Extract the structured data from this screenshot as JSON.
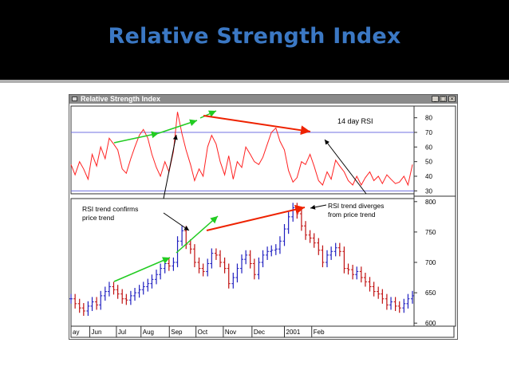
{
  "slide": {
    "title": "Relative Strength Index"
  },
  "window": {
    "title": "Relative Strength Index",
    "minimize_glyph": "_",
    "maximize_glyph": "□",
    "close_glyph": "×"
  },
  "colors": {
    "title": "#3b78c4",
    "rsi_line": "#ff2020",
    "price_up": "#2020c0",
    "price_down": "#c01010",
    "confirm_arrow": "#22cc22",
    "diverge_arrow": "#ee2200",
    "level_line": "#7070e0"
  },
  "chart_data": [
    {
      "type": "line",
      "name": "rsi-panel",
      "label": "14 day RSI",
      "ylim": [
        28,
        88
      ],
      "yticks": [
        "80",
        "70",
        "60",
        "50",
        "40",
        "30"
      ],
      "ytick_values": [
        80,
        70,
        60,
        50,
        40,
        30
      ],
      "levels": [
        70,
        30
      ],
      "xlim": [
        0,
        10
      ],
      "series": [
        {
          "x": [
            0,
            0.12,
            0.25,
            0.37,
            0.5,
            0.62,
            0.75,
            0.87,
            1.0,
            1.12,
            1.25,
            1.37,
            1.5,
            1.62,
            1.75,
            1.87,
            2.0,
            2.12,
            2.25,
            2.37,
            2.5,
            2.62,
            2.75,
            2.87,
            3.0,
            3.12,
            3.25,
            3.37,
            3.5,
            3.62,
            3.75,
            3.87,
            4.0,
            4.12,
            4.25,
            4.37,
            4.5,
            4.62,
            4.75,
            4.87,
            5.0,
            5.12,
            5.25,
            5.37,
            5.5,
            5.62,
            5.75,
            5.87,
            6.0,
            6.12,
            6.25,
            6.37,
            6.5,
            6.62,
            6.75,
            6.87,
            7.0,
            7.12,
            7.25,
            7.37,
            7.5,
            7.62,
            7.75,
            7.87,
            8.0,
            8.12,
            8.25,
            8.37,
            8.5,
            8.62,
            8.75,
            8.87,
            9.0,
            9.12,
            9.25,
            9.37,
            9.5,
            9.62,
            9.75,
            9.87,
            10.0
          ],
          "y": [
            48,
            41,
            50,
            45,
            38,
            55,
            47,
            60,
            52,
            66,
            62,
            58,
            45,
            42,
            52,
            60,
            68,
            72,
            66,
            55,
            46,
            40,
            50,
            43,
            57,
            84,
            69,
            58,
            48,
            37,
            45,
            40,
            60,
            68,
            62,
            50,
            41,
            54,
            38,
            50,
            46,
            60,
            55,
            50,
            48,
            53,
            62,
            70,
            73,
            64,
            58,
            44,
            36,
            39,
            50,
            48,
            55,
            47,
            37,
            34,
            43,
            38,
            51,
            47,
            43,
            37,
            34,
            40,
            34,
            39,
            43,
            37,
            40,
            35,
            41,
            38,
            35,
            36,
            40,
            34,
            48
          ]
        }
      ]
    },
    {
      "type": "ohlc",
      "name": "price-panel",
      "ylim": [
        595,
        805
      ],
      "yticks": [
        "800",
        "750",
        "700",
        "650",
        "600"
      ],
      "ytick_values": [
        800,
        750,
        700,
        650,
        600
      ],
      "xticks": [
        "ay",
        "Jun",
        "Jul",
        "Aug",
        "Sep",
        "Oct",
        "Nov",
        "Dec",
        "2001",
        "Feb"
      ],
      "xlim": [
        0,
        10
      ],
      "series": [
        {
          "x": [
            0,
            0.12,
            0.25,
            0.37,
            0.5,
            0.62,
            0.75,
            0.87,
            1.0,
            1.12,
            1.25,
            1.37,
            1.5,
            1.62,
            1.75,
            1.87,
            2.0,
            2.12,
            2.25,
            2.37,
            2.5,
            2.62,
            2.75,
            2.87,
            3.0,
            3.12,
            3.25,
            3.37,
            3.5,
            3.62,
            3.75,
            3.87,
            4.0,
            4.12,
            4.25,
            4.37,
            4.5,
            4.62,
            4.75,
            4.87,
            5.0,
            5.12,
            5.25,
            5.37,
            5.5,
            5.62,
            5.75,
            5.87,
            6.0,
            6.12,
            6.25,
            6.37,
            6.5,
            6.62,
            6.75,
            6.87,
            7.0,
            7.12,
            7.25,
            7.37,
            7.5,
            7.62,
            7.75,
            7.87,
            8.0,
            8.12,
            8.25,
            8.37,
            8.5,
            8.62,
            8.75,
            8.87,
            9.0,
            9.12,
            9.25,
            9.37,
            9.5,
            9.62,
            9.75,
            9.87,
            10.0
          ],
          "close": [
            640,
            632,
            625,
            620,
            628,
            635,
            630,
            645,
            652,
            660,
            655,
            648,
            640,
            638,
            645,
            650,
            655,
            660,
            665,
            672,
            680,
            690,
            698,
            694,
            700,
            735,
            752,
            730,
            722,
            700,
            690,
            685,
            698,
            715,
            712,
            700,
            690,
            665,
            675,
            690,
            705,
            712,
            698,
            680,
            700,
            712,
            718,
            720,
            722,
            735,
            755,
            775,
            790,
            780,
            760,
            745,
            740,
            732,
            720,
            700,
            712,
            718,
            724,
            718,
            690,
            688,
            680,
            685,
            675,
            668,
            660,
            652,
            648,
            640,
            630,
            635,
            628,
            625,
            632,
            640,
            645
          ]
        }
      ]
    }
  ],
  "annotations": {
    "confirm_text_1": "RSI trend confirms",
    "confirm_text_2": "price trend",
    "diverge_text_1": "RSI trend diverges",
    "diverge_text_2": "from price trend"
  }
}
